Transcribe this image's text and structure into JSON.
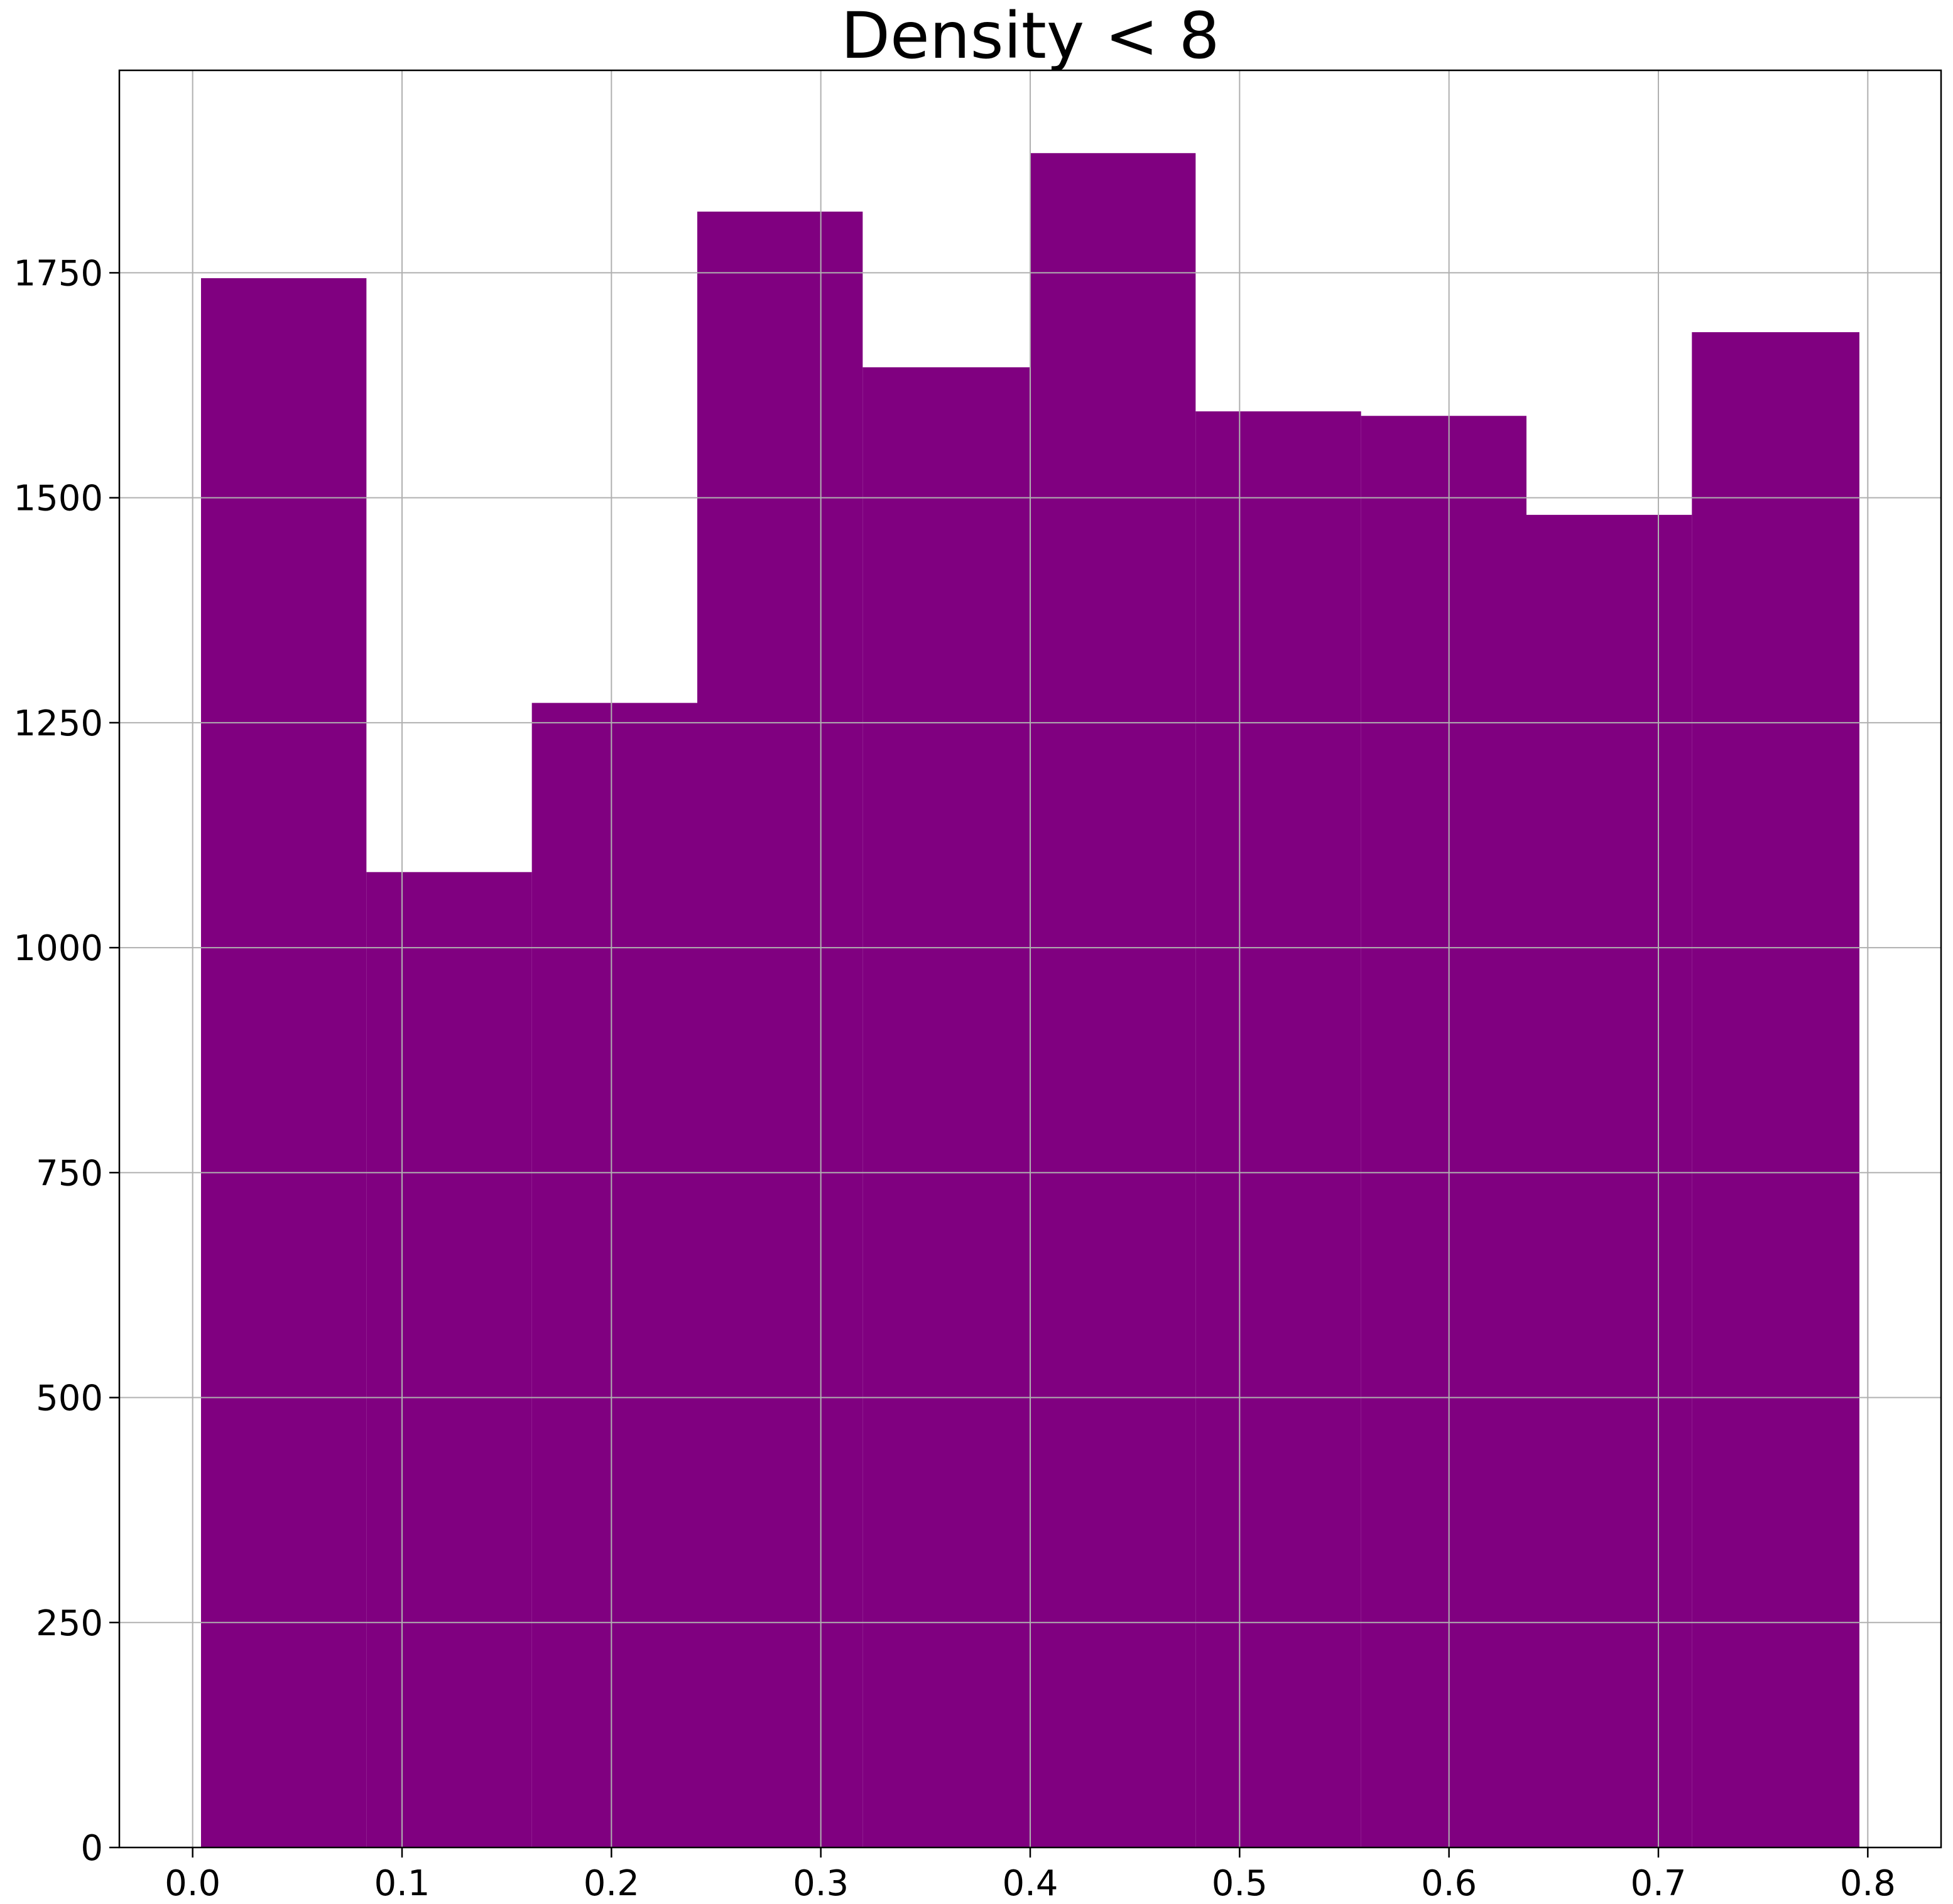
{
  "chart_data": {
    "type": "bar",
    "title": "Density < 8",
    "xlabel": "",
    "ylabel": "",
    "xlim": [
      -0.035,
      0.835
    ],
    "ylim": [
      0,
      1975
    ],
    "grid": true,
    "bar_color": "#800080",
    "bins": [
      {
        "x0": 0.004,
        "x1": 0.083,
        "count": 1744
      },
      {
        "x0": 0.083,
        "x1": 0.162,
        "count": 1084
      },
      {
        "x0": 0.162,
        "x1": 0.241,
        "count": 1272
      },
      {
        "x0": 0.241,
        "x1": 0.32,
        "count": 1818
      },
      {
        "x0": 0.32,
        "x1": 0.4,
        "count": 1645
      },
      {
        "x0": 0.4,
        "x1": 0.479,
        "count": 1883
      },
      {
        "x0": 0.479,
        "x1": 0.558,
        "count": 1596
      },
      {
        "x0": 0.558,
        "x1": 0.637,
        "count": 1591
      },
      {
        "x0": 0.637,
        "x1": 0.716,
        "count": 1481
      },
      {
        "x0": 0.716,
        "x1": 0.796,
        "count": 1684
      }
    ],
    "x_ticks": [
      {
        "value": 0.0,
        "label": "0.0"
      },
      {
        "value": 0.1,
        "label": "0.1"
      },
      {
        "value": 0.2,
        "label": "0.2"
      },
      {
        "value": 0.3,
        "label": "0.3"
      },
      {
        "value": 0.4,
        "label": "0.4"
      },
      {
        "value": 0.5,
        "label": "0.5"
      },
      {
        "value": 0.6,
        "label": "0.6"
      },
      {
        "value": 0.7,
        "label": "0.7"
      },
      {
        "value": 0.8,
        "label": "0.8"
      }
    ],
    "y_ticks": [
      {
        "value": 0,
        "label": "0"
      },
      {
        "value": 250,
        "label": "250"
      },
      {
        "value": 500,
        "label": "500"
      },
      {
        "value": 750,
        "label": "750"
      },
      {
        "value": 1000,
        "label": "1000"
      },
      {
        "value": 1250,
        "label": "1250"
      },
      {
        "value": 1500,
        "label": "1500"
      },
      {
        "value": 1750,
        "label": "1750"
      }
    ]
  }
}
